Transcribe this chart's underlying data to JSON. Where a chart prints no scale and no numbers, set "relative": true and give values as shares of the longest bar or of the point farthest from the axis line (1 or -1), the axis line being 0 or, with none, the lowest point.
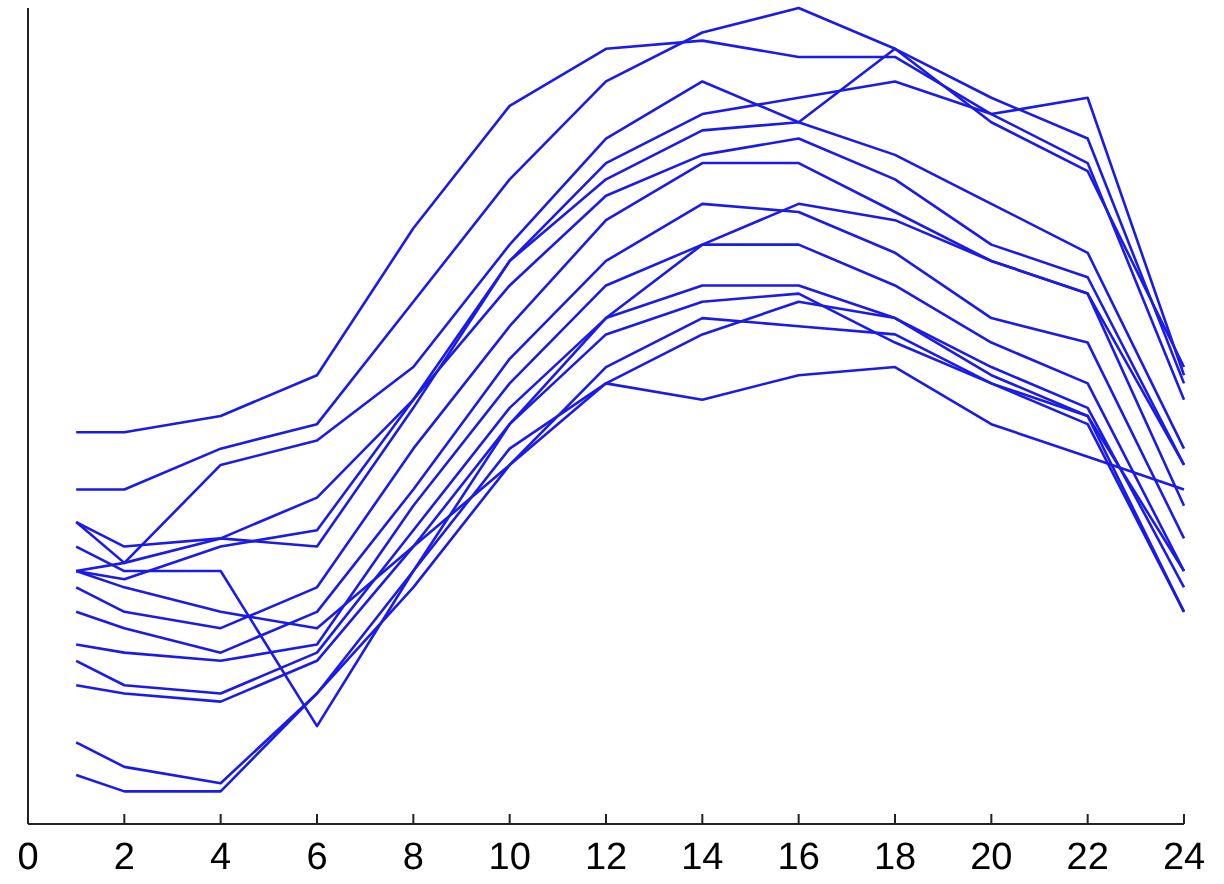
{
  "chart_data": {
    "type": "line",
    "relative": true,
    "x": [
      1,
      2,
      4,
      6,
      8,
      10,
      12,
      14,
      16,
      18,
      20,
      22,
      24
    ],
    "xlim": [
      0,
      24
    ],
    "xticks": [
      0,
      2,
      4,
      6,
      8,
      10,
      12,
      14,
      16,
      18,
      20,
      22,
      24
    ],
    "series": [
      {
        "color": "#1a1aeb",
        "values": [
          0.48,
          0.48,
          0.5,
          0.55,
          0.73,
          0.88,
          0.95,
          0.96,
          0.94,
          0.94,
          0.87,
          0.81,
          0.52
        ]
      },
      {
        "color": "#1a1aeb",
        "values": [
          0.41,
          0.41,
          0.46,
          0.49,
          0.64,
          0.79,
          0.91,
          0.97,
          1.0,
          0.95,
          0.86,
          0.8,
          0.56
        ]
      },
      {
        "color": "#1a1aeb",
        "values": [
          0.37,
          0.32,
          0.44,
          0.47,
          0.56,
          0.71,
          0.84,
          0.91,
          0.86,
          0.95,
          0.89,
          0.84,
          0.54
        ]
      },
      {
        "color": "#1a1aeb",
        "values": [
          0.37,
          0.34,
          0.35,
          0.34,
          0.51,
          0.69,
          0.79,
          0.85,
          0.86,
          0.82,
          0.76,
          0.7,
          0.46
        ]
      },
      {
        "color": "#1a1aeb",
        "values": [
          0.31,
          0.3,
          0.34,
          0.36,
          0.52,
          0.66,
          0.77,
          0.82,
          0.84,
          0.79,
          0.71,
          0.67,
          0.44
        ]
      },
      {
        "color": "#1a1aeb",
        "values": [
          0.29,
          0.26,
          0.24,
          0.29,
          0.46,
          0.61,
          0.74,
          0.81,
          0.81,
          0.75,
          0.69,
          0.65,
          0.39
        ]
      },
      {
        "color": "#1a1aeb",
        "values": [
          0.26,
          0.24,
          0.21,
          0.26,
          0.41,
          0.57,
          0.69,
          0.76,
          0.75,
          0.7,
          0.62,
          0.59,
          0.35
        ]
      },
      {
        "color": "#1a1aeb",
        "values": [
          0.22,
          0.21,
          0.2,
          0.22,
          0.39,
          0.54,
          0.66,
          0.71,
          0.71,
          0.66,
          0.59,
          0.54,
          0.31
        ]
      },
      {
        "color": "#1a1aeb",
        "values": [
          0.2,
          0.17,
          0.16,
          0.21,
          0.36,
          0.51,
          0.62,
          0.66,
          0.66,
          0.62,
          0.56,
          0.51,
          0.29
        ]
      },
      {
        "color": "#1a1aeb",
        "values": [
          0.17,
          0.16,
          0.15,
          0.2,
          0.34,
          0.49,
          0.6,
          0.64,
          0.65,
          0.59,
          0.54,
          0.49,
          0.26
        ]
      },
      {
        "color": "#1a1aeb",
        "values": [
          0.1,
          0.07,
          0.05,
          0.16,
          0.31,
          0.46,
          0.54,
          0.6,
          0.64,
          0.62,
          0.55,
          0.5,
          0.31
        ]
      },
      {
        "color": "#1a1aeb",
        "values": [
          0.06,
          0.04,
          0.04,
          0.16,
          0.29,
          0.44,
          0.56,
          0.62,
          0.61,
          0.6,
          0.54,
          0.5,
          0.26
        ]
      },
      {
        "color": "#1a1aeb",
        "values": [
          0.31,
          0.29,
          0.26,
          0.24,
          0.34,
          0.44,
          0.54,
          0.52,
          0.55,
          0.56,
          0.49,
          0.45,
          0.41
        ]
      },
      {
        "color": "#1a1aeb",
        "values": [
          0.34,
          0.31,
          0.31,
          0.12,
          0.31,
          0.49,
          0.62,
          0.71,
          0.76,
          0.74,
          0.69,
          0.65,
          0.44
        ]
      },
      {
        "color": "#1a1aeb",
        "values": [
          0.31,
          0.32,
          0.35,
          0.4,
          0.52,
          0.69,
          0.81,
          0.87,
          0.89,
          0.91,
          0.87,
          0.89,
          0.55
        ]
      }
    ]
  }
}
